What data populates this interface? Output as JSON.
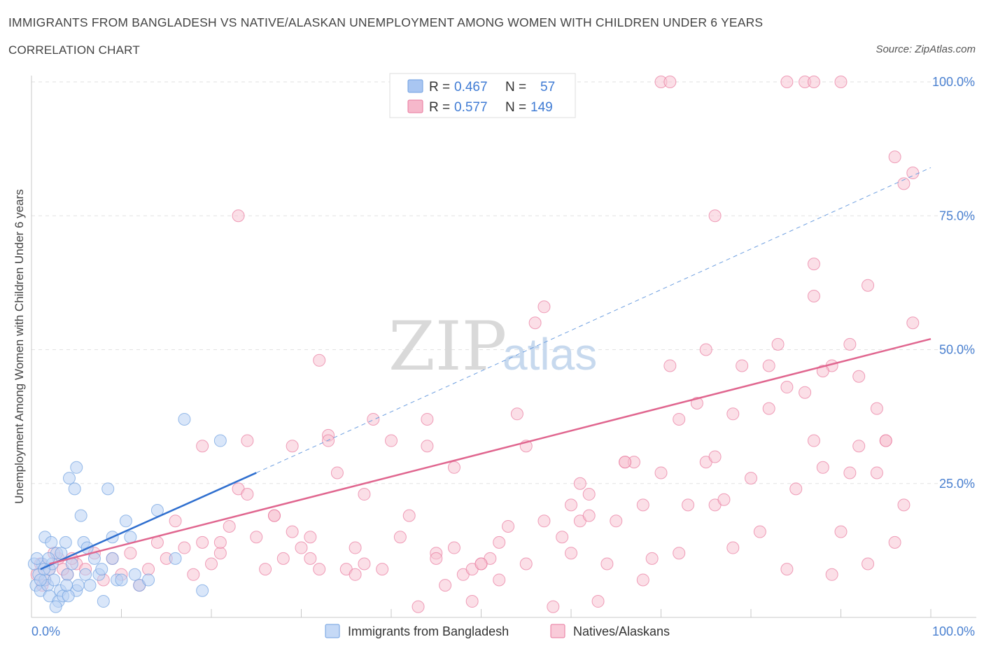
{
  "header": {
    "title": "IMMIGRANTS FROM BANGLADESH VS NATIVE/ALASKAN UNEMPLOYMENT AMONG WOMEN WITH CHILDREN UNDER 6 YEARS",
    "subtitle": "CORRELATION CHART",
    "source": "Source: ZipAtlas.com"
  },
  "watermark": {
    "zip": "ZIP",
    "atlas": "atlas"
  },
  "stats": {
    "r_label": "R =",
    "n_label": "N =",
    "rows": [
      {
        "r": "0.467",
        "n": "57",
        "color": "#a9c6f2"
      },
      {
        "r": "0.577",
        "n": "149",
        "color": "#f6b8cb"
      }
    ]
  },
  "chart_data": {
    "type": "scatter",
    "ylabel": "Unemployment Among Women with Children Under 6 years",
    "x_ticks": [
      "0.0%",
      "100.0%"
    ],
    "y_ticks": [
      "25.0%",
      "50.0%",
      "75.0%",
      "100.0%"
    ],
    "xlim": [
      0,
      100
    ],
    "ylim": [
      0,
      100
    ],
    "grid": true,
    "legend_position": "bottom",
    "series": [
      {
        "name": "Immigrants from Bangladesh",
        "color": "#6e9fe0",
        "fill": "#b9d1f4",
        "trend": {
          "x0": 1,
          "y0": 9,
          "x1": 25,
          "y1": 27,
          "dashed_to_x": 100,
          "dashed_to_y": 84
        },
        "points": [
          [
            0.5,
            6
          ],
          [
            0.8,
            8
          ],
          [
            1,
            5
          ],
          [
            1.2,
            10
          ],
          [
            1.5,
            7
          ],
          [
            1.8,
            6
          ],
          [
            2,
            4
          ],
          [
            2,
            9
          ],
          [
            2.3,
            10
          ],
          [
            2.5,
            7
          ],
          [
            2.8,
            12
          ],
          [
            3,
            3
          ],
          [
            3.2,
            5
          ],
          [
            3.5,
            4
          ],
          [
            3.8,
            14
          ],
          [
            4,
            8
          ],
          [
            4.2,
            26
          ],
          [
            4.5,
            10
          ],
          [
            4.8,
            24
          ],
          [
            5,
            28
          ],
          [
            5,
            5
          ],
          [
            5.5,
            19
          ],
          [
            5.8,
            14
          ],
          [
            6,
            8
          ],
          [
            6.5,
            6
          ],
          [
            7,
            11
          ],
          [
            7.5,
            8
          ],
          [
            8,
            3
          ],
          [
            8.5,
            24
          ],
          [
            9,
            11
          ],
          [
            9.5,
            7
          ],
          [
            10,
            7
          ],
          [
            10.5,
            18
          ],
          [
            11,
            15
          ],
          [
            11.5,
            8
          ],
          [
            12,
            6
          ],
          [
            14,
            20
          ],
          [
            16,
            11
          ],
          [
            17,
            37
          ],
          [
            19,
            5
          ],
          [
            21,
            33
          ],
          [
            1,
            7
          ],
          [
            1.5,
            15
          ],
          [
            2.2,
            14
          ],
          [
            3.3,
            12
          ],
          [
            4.1,
            4
          ],
          [
            2.7,
            2
          ],
          [
            0.3,
            10
          ],
          [
            1.9,
            11
          ],
          [
            3.9,
            6
          ],
          [
            6.2,
            13
          ],
          [
            7.8,
            9
          ],
          [
            0.6,
            11
          ],
          [
            1.4,
            9
          ],
          [
            9,
            15
          ],
          [
            13,
            7
          ],
          [
            5.2,
            6
          ]
        ]
      },
      {
        "name": "Natives/Alaskans",
        "color": "#e8779d",
        "fill": "#f8c4d4",
        "trend": {
          "x0": 2,
          "y0": 10,
          "x1": 100,
          "y1": 52
        },
        "points": [
          [
            0.6,
            8
          ],
          [
            1,
            10
          ],
          [
            1.5,
            7
          ],
          [
            2,
            9
          ],
          [
            3,
            11
          ],
          [
            4,
            8
          ],
          [
            5,
            10
          ],
          [
            6,
            9
          ],
          [
            7,
            12
          ],
          [
            8,
            7
          ],
          [
            9,
            11
          ],
          [
            10,
            8
          ],
          [
            11,
            12
          ],
          [
            12,
            6
          ],
          [
            13,
            9
          ],
          [
            14,
            14
          ],
          [
            15,
            11
          ],
          [
            16,
            18
          ],
          [
            17,
            13
          ],
          [
            18,
            8
          ],
          [
            19,
            14
          ],
          [
            20,
            10
          ],
          [
            21,
            12
          ],
          [
            22,
            17
          ],
          [
            23,
            24
          ],
          [
            24,
            23
          ],
          [
            25,
            15
          ],
          [
            26,
            9
          ],
          [
            27,
            19
          ],
          [
            28,
            11
          ],
          [
            29,
            32
          ],
          [
            30,
            13
          ],
          [
            31,
            15
          ],
          [
            32,
            48
          ],
          [
            33,
            34
          ],
          [
            34,
            27
          ],
          [
            35,
            9
          ],
          [
            36,
            13
          ],
          [
            37,
            10
          ],
          [
            38,
            37
          ],
          [
            39,
            9
          ],
          [
            40,
            33
          ],
          [
            41,
            15
          ],
          [
            42,
            19
          ],
          [
            43,
            2
          ],
          [
            44,
            37
          ],
          [
            45,
            12
          ],
          [
            46,
            6
          ],
          [
            47,
            13
          ],
          [
            48,
            8
          ],
          [
            49,
            3
          ],
          [
            50,
            10
          ],
          [
            51,
            11
          ],
          [
            52,
            7
          ],
          [
            53,
            17
          ],
          [
            54,
            38
          ],
          [
            55,
            10
          ],
          [
            56,
            55
          ],
          [
            57,
            58
          ],
          [
            58,
            2
          ],
          [
            59,
            15
          ],
          [
            60,
            12
          ],
          [
            61,
            18
          ],
          [
            62,
            19
          ],
          [
            63,
            3
          ],
          [
            64,
            10
          ],
          [
            65,
            18
          ],
          [
            66,
            29
          ],
          [
            67,
            29
          ],
          [
            68,
            21
          ],
          [
            69,
            11
          ],
          [
            70,
            27
          ],
          [
            71,
            47
          ],
          [
            72,
            12
          ],
          [
            73,
            21
          ],
          [
            74,
            40
          ],
          [
            75,
            29
          ],
          [
            76,
            21
          ],
          [
            77,
            22
          ],
          [
            78,
            38
          ],
          [
            79,
            47
          ],
          [
            80,
            26
          ],
          [
            81,
            16
          ],
          [
            82,
            47
          ],
          [
            83,
            51
          ],
          [
            84,
            43
          ],
          [
            85,
            24
          ],
          [
            86,
            42
          ],
          [
            87,
            33
          ],
          [
            88,
            28
          ],
          [
            89,
            47
          ],
          [
            90,
            16
          ],
          [
            91,
            51
          ],
          [
            92,
            45
          ],
          [
            93,
            10
          ],
          [
            94,
            27
          ],
          [
            95,
            33
          ],
          [
            96,
            14
          ],
          [
            97,
            21
          ],
          [
            98,
            55
          ],
          [
            23,
            75
          ],
          [
            76,
            75
          ],
          [
            75,
            50
          ],
          [
            70,
            100
          ],
          [
            71,
            100
          ],
          [
            84,
            100
          ],
          [
            86,
            100
          ],
          [
            87,
            100
          ],
          [
            90,
            100
          ],
          [
            96,
            86
          ],
          [
            97,
            81
          ],
          [
            98,
            83
          ],
          [
            93,
            62
          ],
          [
            87,
            66
          ],
          [
            87,
            60
          ],
          [
            82,
            39
          ],
          [
            72,
            37
          ],
          [
            95,
            33
          ],
          [
            89,
            8
          ],
          [
            84,
            9
          ],
          [
            68,
            7
          ],
          [
            66,
            29
          ],
          [
            76,
            30
          ],
          [
            91,
            27
          ],
          [
            61,
            25
          ],
          [
            44,
            32
          ],
          [
            52,
            14
          ],
          [
            57,
            18
          ],
          [
            49,
            9
          ],
          [
            33,
            33
          ],
          [
            24,
            33
          ],
          [
            27,
            19
          ],
          [
            32,
            9
          ],
          [
            21,
            14
          ],
          [
            19,
            32
          ],
          [
            29,
            16
          ],
          [
            31,
            11
          ],
          [
            36,
            8
          ],
          [
            47,
            28
          ],
          [
            50,
            10
          ],
          [
            55,
            32
          ],
          [
            37,
            23
          ],
          [
            60,
            21
          ],
          [
            62,
            23
          ],
          [
            78,
            13
          ],
          [
            45,
            11
          ],
          [
            88,
            46
          ],
          [
            92,
            32
          ],
          [
            94,
            39
          ],
          [
            1.2,
            6
          ],
          [
            2.5,
            12
          ],
          [
            3.5,
            9
          ],
          [
            4.5,
            11
          ]
        ]
      }
    ]
  }
}
